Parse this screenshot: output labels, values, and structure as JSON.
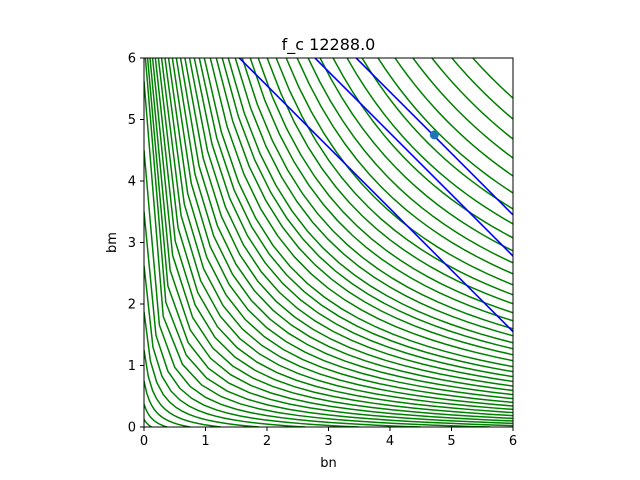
{
  "chart_data": {
    "type": "line",
    "title": "f_c 12288.0",
    "xlabel": "bn",
    "ylabel": "bm",
    "xlim": [
      0,
      6
    ],
    "ylim": [
      0,
      6
    ],
    "xticks": [
      "0",
      "1",
      "2",
      "3",
      "4",
      "5",
      "6"
    ],
    "yticks": [
      "0",
      "1",
      "2",
      "3",
      "4",
      "5",
      "6"
    ],
    "grid": false,
    "legend": false,
    "contours": {
      "color": "#008000",
      "function": "x*y + 0.16*(x + y)",
      "levels": [
        0.02,
        0.06,
        0.12,
        0.2,
        0.3,
        0.42,
        0.56,
        0.72,
        0.9,
        1.1,
        1.32,
        1.56,
        1.82,
        2.1,
        2.4,
        2.72,
        3.06,
        3.42,
        3.8,
        4.2,
        4.62,
        5.06,
        5.52,
        6.0,
        6.5,
        7.0,
        7.6,
        8.2,
        8.8,
        9.4,
        10.1,
        10.8,
        11.6,
        12.4,
        13.3,
        14.2,
        15.2,
        16.3,
        17.4,
        18.6,
        19.9,
        21.3,
        22.8,
        24.4,
        26.1,
        27.9,
        29.8,
        31.8,
        33.9
      ]
    },
    "series": [
      {
        "type": "line",
        "color": "#0000ff",
        "x": [
          1.55,
          6.0
        ],
        "y": [
          6.0,
          1.55
        ]
      },
      {
        "type": "line",
        "color": "#0000ff",
        "x": [
          2.78,
          6.0
        ],
        "y": [
          6.0,
          2.78
        ]
      },
      {
        "type": "line",
        "color": "#0000ff",
        "x": [
          3.45,
          6.0
        ],
        "y": [
          6.0,
          3.45
        ]
      },
      {
        "type": "scatter",
        "color": "#1f77b4",
        "x": [
          4.72
        ],
        "y": [
          4.75
        ]
      }
    ]
  }
}
